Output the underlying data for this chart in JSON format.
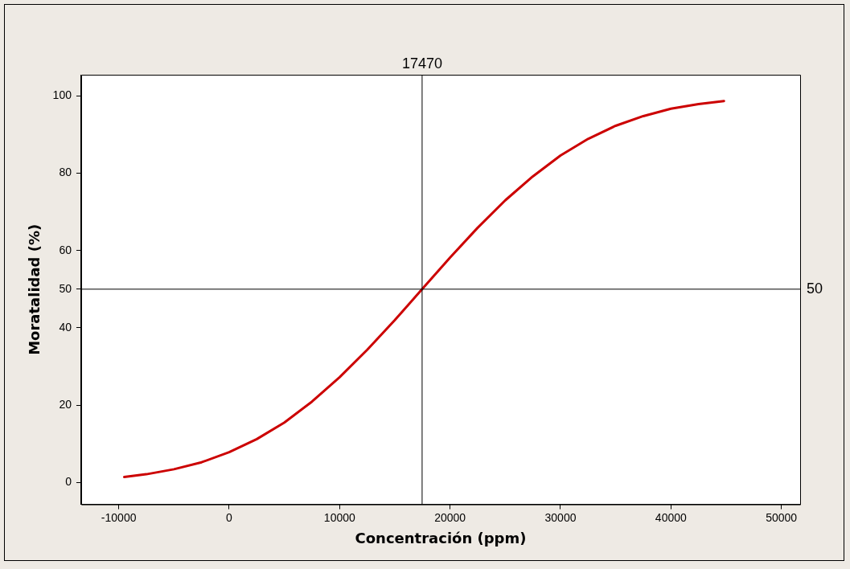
{
  "chart_data": {
    "type": "line",
    "xlabel": "Concentración (ppm)",
    "ylabel": "Moratalidad (%)",
    "x": [
      -9500,
      -7500,
      -5000,
      -2500,
      0,
      2500,
      5000,
      7500,
      10000,
      12500,
      15000,
      17470,
      20000,
      22500,
      25000,
      27500,
      30000,
      32500,
      35000,
      37500,
      40000,
      42500,
      44800
    ],
    "series": [
      {
        "color": "#cc0000",
        "values": [
          1.4,
          2.1,
          3.4,
          5.2,
          7.8,
          11.2,
          15.5,
          20.9,
          27.2,
          34.3,
          42.0,
          50,
          58.2,
          65.9,
          73.0,
          79.2,
          84.6,
          88.9,
          92.3,
          94.8,
          96.7,
          97.9,
          98.7
        ]
      }
    ],
    "xlim": [
      -13400,
      51700
    ],
    "xticks": [
      -10000,
      0,
      10000,
      20000,
      30000,
      40000,
      50000
    ],
    "ylim": [
      -5.7,
      105.5
    ],
    "yticks": [
      0,
      20,
      40,
      50,
      60,
      80,
      100
    ],
    "ref_lines": [
      {
        "axis": "x",
        "value": 17470,
        "label": "17470",
        "color": "#000000"
      },
      {
        "axis": "y",
        "value": 50,
        "label": "50",
        "color": "#000000"
      }
    ],
    "grid": false,
    "legend": false,
    "marker": "none",
    "line_style": "solid"
  }
}
